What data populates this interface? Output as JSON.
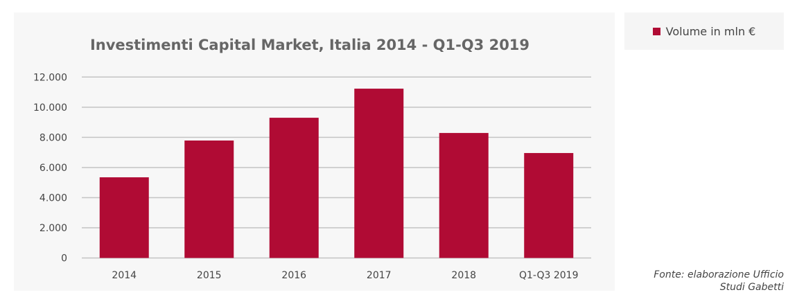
{
  "chart_data": {
    "type": "bar",
    "title": "Investimenti Capital Market, Italia 2014 - Q1-Q3 2019",
    "categories": [
      "2014",
      "2015",
      "2016",
      "2017",
      "2018",
      "Q1-Q3 2019"
    ],
    "series": [
      {
        "name": "Volume in mln €",
        "values": [
          5350,
          7790,
          9300,
          11230,
          8290,
          6960
        ]
      }
    ],
    "yticks": [
      "0",
      "2.000",
      "4.000",
      "6.000",
      "8.000",
      "10.000",
      "12.000"
    ],
    "ylim": [
      0,
      12000
    ],
    "grid": true,
    "legend": "right",
    "color": "#b00b34"
  },
  "source": {
    "line1": "Fonte: elaborazione Ufficio",
    "line2": "Studi Gabetti"
  }
}
